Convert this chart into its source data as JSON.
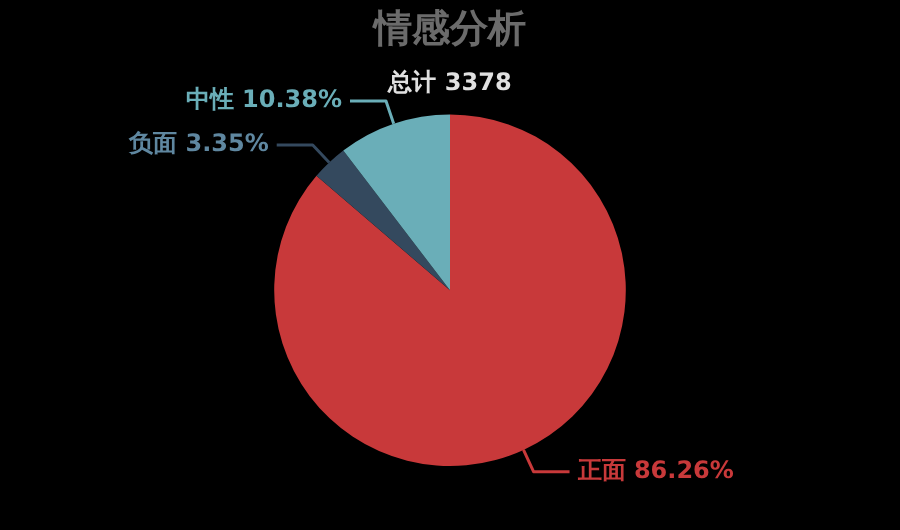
{
  "chart_data": {
    "type": "pie",
    "title": "情感分析",
    "subtitle": "总计 3378",
    "categories": [
      "正面",
      "负面",
      "中性"
    ],
    "values": [
      86.26,
      3.35,
      10.38
    ],
    "value_labels": [
      "86.26%",
      "3.35%",
      "10.38%"
    ],
    "colors": [
      "#c8393a",
      "#34495e",
      "#6aaeb8"
    ],
    "legend": false
  }
}
